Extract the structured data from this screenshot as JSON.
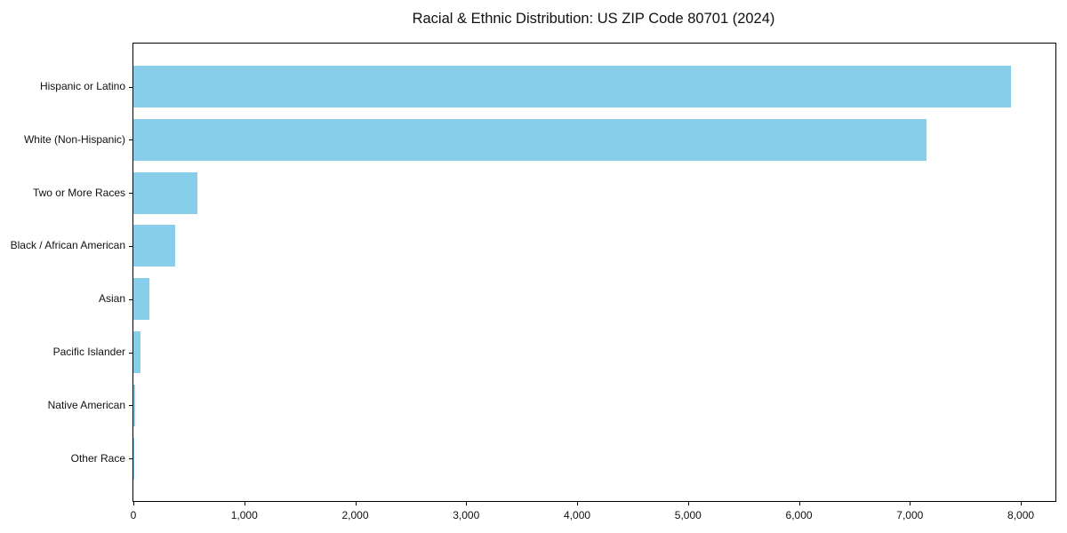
{
  "chart_data": {
    "type": "bar",
    "orientation": "horizontal",
    "title": "Racial & Ethnic Distribution: US ZIP Code 80701 (2024)",
    "xlabel": "",
    "ylabel": "",
    "categories": [
      "Hispanic or Latino",
      "White (Non-Hispanic)",
      "Two or More Races",
      "Black / African American",
      "Asian",
      "Pacific Islander",
      "Native American",
      "Other Race"
    ],
    "values": [
      7910,
      7150,
      580,
      375,
      145,
      65,
      15,
      5
    ],
    "xlim": [
      0,
      8312
    ],
    "x_ticks": [
      0,
      1000,
      2000,
      3000,
      4000,
      5000,
      6000,
      7000,
      8000
    ],
    "x_tick_labels": [
      "0",
      "1,000",
      "2,000",
      "3,000",
      "4,000",
      "5,000",
      "6,000",
      "7,000",
      "8,000"
    ],
    "bar_color": "#87CEEB",
    "grid": false,
    "legend": "none",
    "frame": "full-box"
  }
}
